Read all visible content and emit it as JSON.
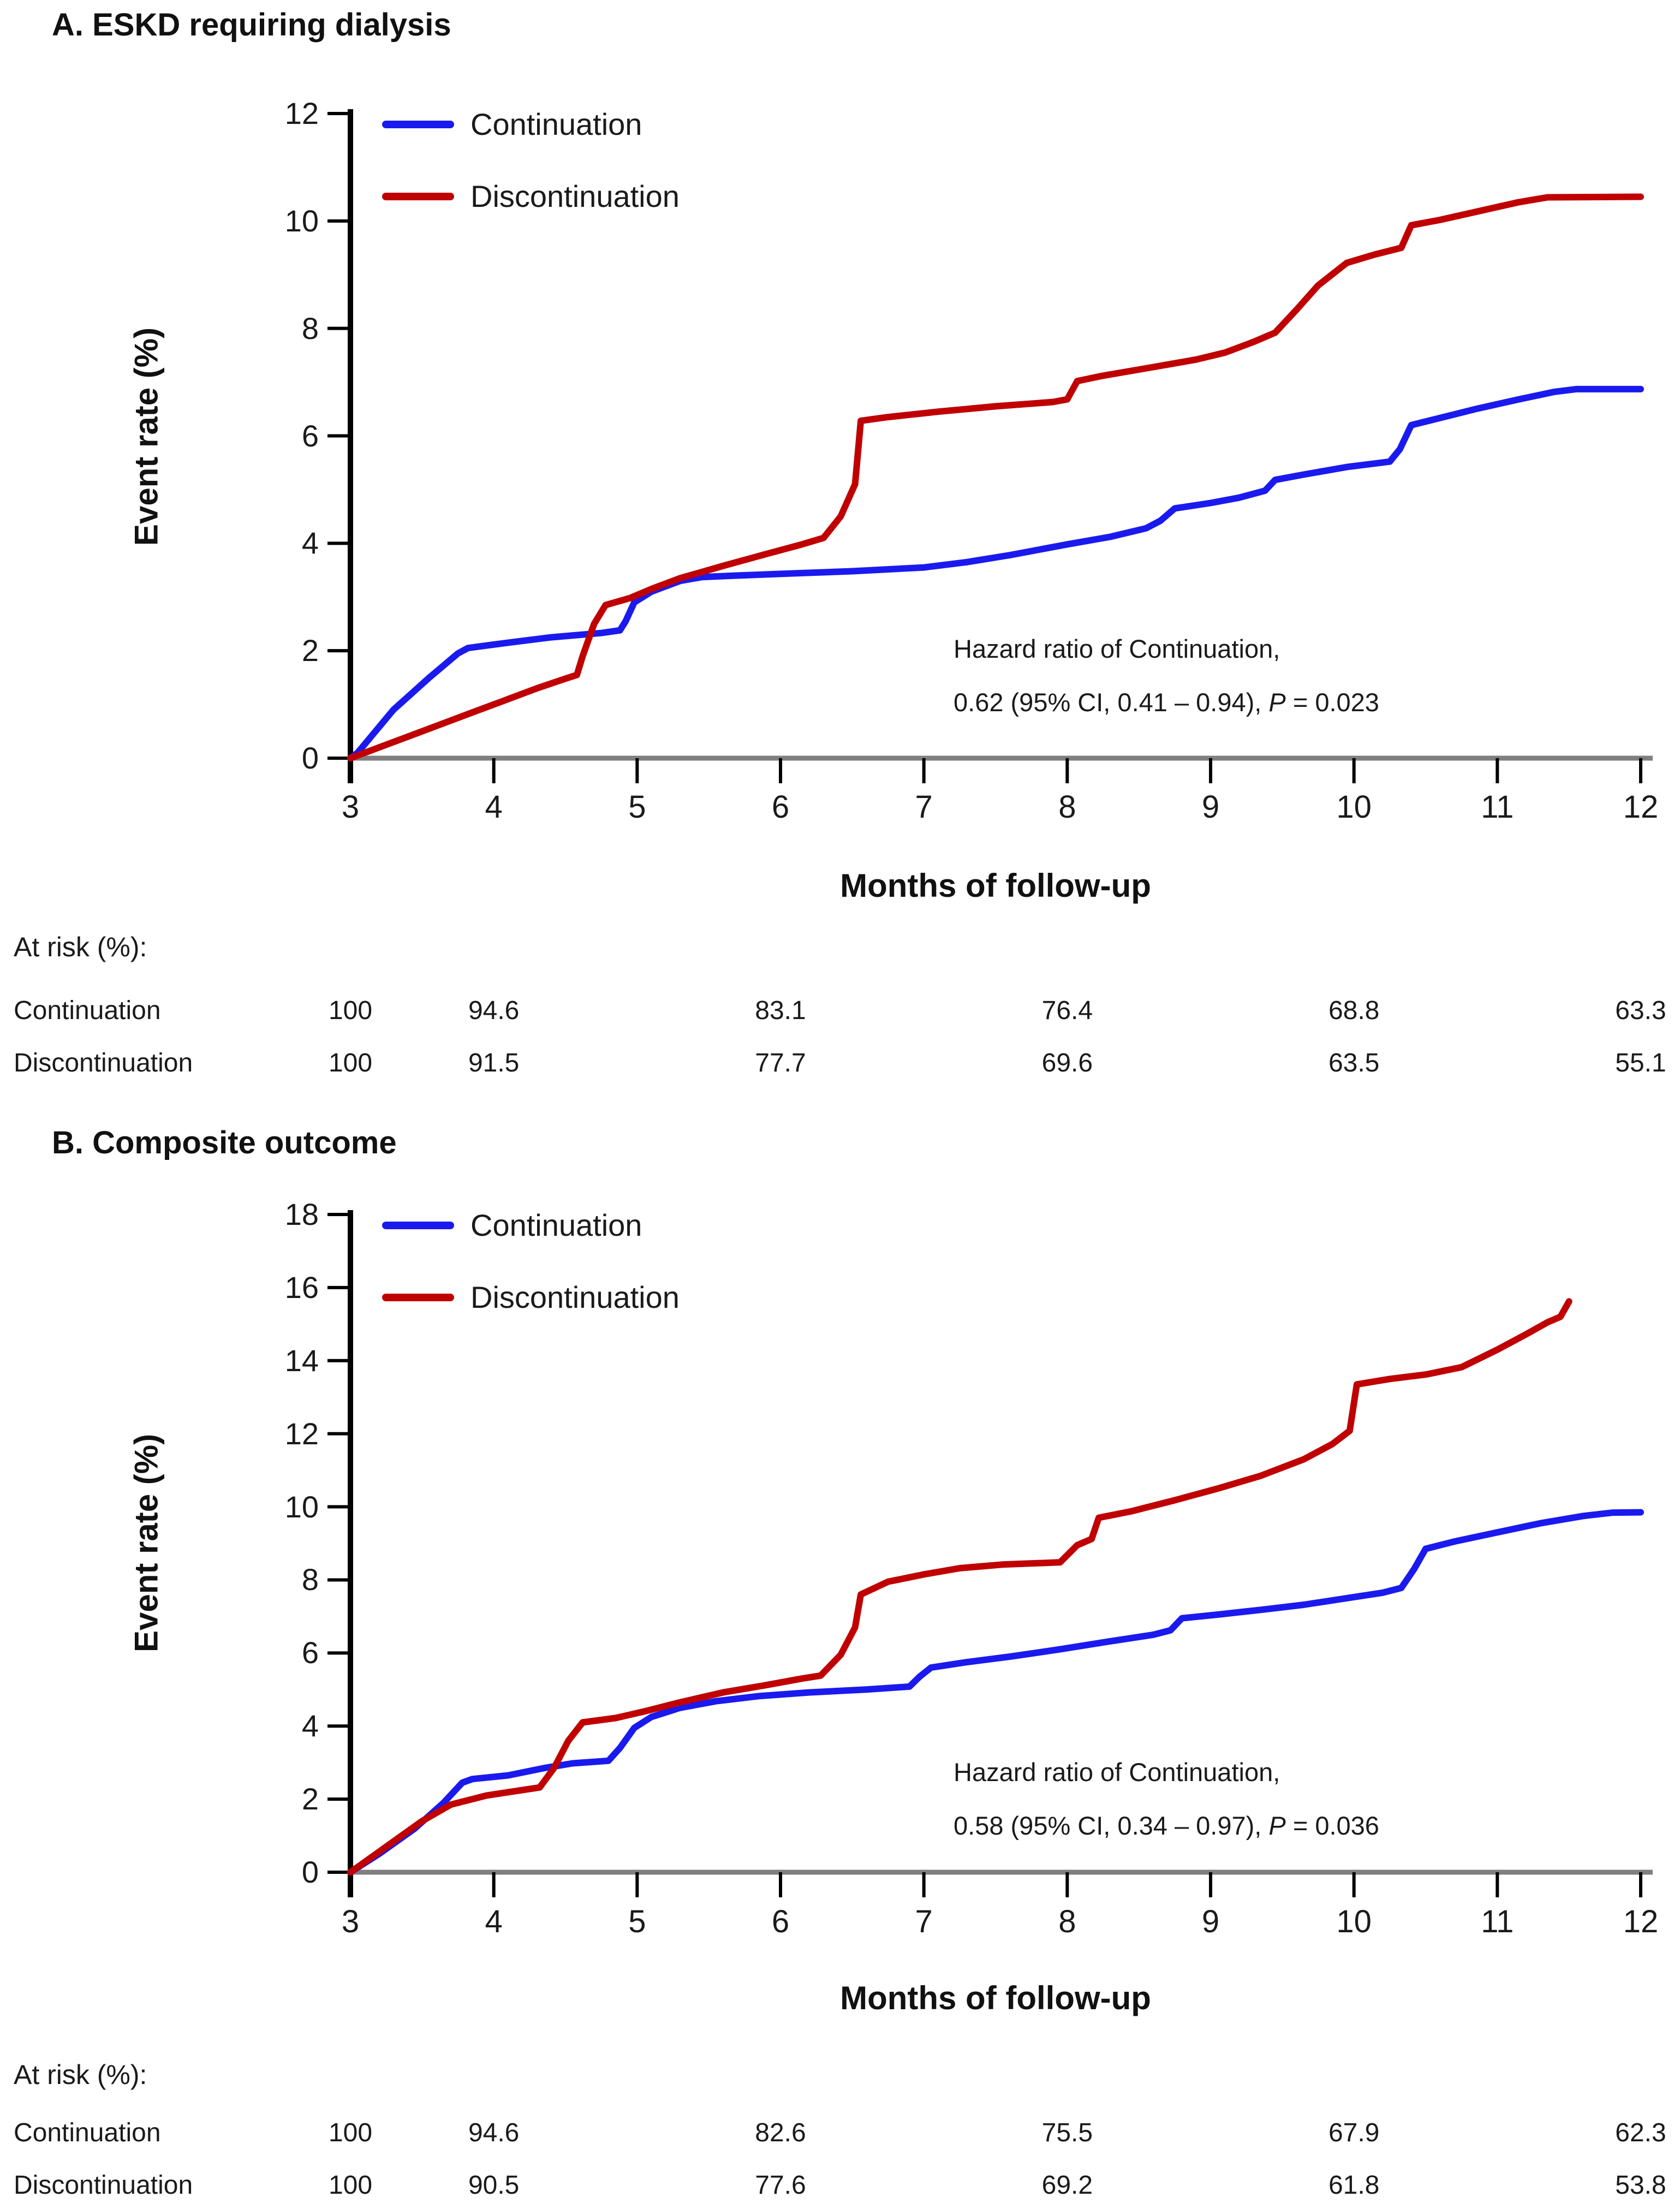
{
  "colors": {
    "continuation": "#1a1aef",
    "discontinuation": "#c00000",
    "y_axis": "#000000",
    "x_baseline": "#7f7f7f",
    "tick": "#000000",
    "text": "#1a1a1a"
  },
  "chart_data": [
    {
      "type": "line",
      "title": "A. ESKD requiring dialysis",
      "xlabel": "Months of follow-up",
      "ylabel": "Event rate (%)",
      "xlim": [
        3,
        12
      ],
      "ylim": [
        0,
        12
      ],
      "xticks": [
        3,
        4,
        5,
        6,
        7,
        8,
        9,
        10,
        11,
        12
      ],
      "yticks": [
        0,
        2,
        4,
        6,
        8,
        10,
        12
      ],
      "grid": false,
      "legend_position": "top-left-inside",
      "annotation": {
        "line1": "Hazard ratio of Continuation,",
        "line2_prefix": "0.62 (95% CI, 0.41 – 0.94), ",
        "line2_italic": "P",
        "line2_suffix": " = 0.023"
      },
      "series": [
        {
          "name": "Continuation",
          "color": "#1a1aef",
          "x": [
            3.0,
            3.05,
            3.3,
            3.55,
            3.75,
            3.82,
            4.1,
            4.4,
            4.75,
            4.88,
            4.92,
            4.98,
            5.1,
            5.3,
            5.45,
            5.7,
            6.1,
            6.5,
            7.0,
            7.3,
            7.6,
            8.0,
            8.3,
            8.55,
            8.65,
            8.75,
            9.0,
            9.2,
            9.38,
            9.45,
            9.65,
            9.95,
            10.25,
            10.32,
            10.4,
            10.55,
            10.85,
            11.15,
            11.4,
            11.55,
            12.0
          ],
          "y": [
            0,
            0.1,
            0.9,
            1.5,
            1.95,
            2.05,
            2.15,
            2.25,
            2.33,
            2.38,
            2.55,
            2.9,
            3.1,
            3.3,
            3.37,
            3.4,
            3.44,
            3.48,
            3.55,
            3.65,
            3.78,
            3.98,
            4.12,
            4.28,
            4.42,
            4.65,
            4.75,
            4.85,
            4.98,
            5.18,
            5.28,
            5.42,
            5.52,
            5.75,
            6.2,
            6.3,
            6.5,
            6.68,
            6.82,
            6.87,
            6.87
          ]
        },
        {
          "name": "Discontinuation",
          "color": "#c00000",
          "x": [
            3.0,
            3.25,
            3.55,
            3.85,
            4.05,
            4.3,
            4.5,
            4.58,
            4.62,
            4.7,
            4.78,
            4.95,
            5.1,
            5.3,
            5.6,
            5.9,
            6.15,
            6.3,
            6.42,
            6.52,
            6.56,
            6.75,
            7.1,
            7.5,
            7.9,
            8.0,
            8.07,
            8.25,
            8.6,
            8.9,
            9.1,
            9.3,
            9.45,
            9.6,
            9.75,
            9.95,
            10.15,
            10.33,
            10.4,
            10.6,
            10.9,
            11.15,
            11.35,
            12.0
          ],
          "y": [
            0,
            0.25,
            0.55,
            0.85,
            1.05,
            1.3,
            1.48,
            1.55,
            1.9,
            2.5,
            2.85,
            2.98,
            3.15,
            3.35,
            3.58,
            3.8,
            3.98,
            4.1,
            4.5,
            5.1,
            6.28,
            6.35,
            6.45,
            6.55,
            6.63,
            6.68,
            7.02,
            7.12,
            7.28,
            7.42,
            7.55,
            7.75,
            7.92,
            8.35,
            8.8,
            9.22,
            9.38,
            9.5,
            9.92,
            10.02,
            10.2,
            10.35,
            10.44,
            10.45
          ]
        }
      ],
      "at_risk": {
        "label": "At risk (%):",
        "months": [
          3,
          4,
          6,
          8,
          10,
          12
        ],
        "rows": [
          {
            "name": "Continuation",
            "values": [
              "100",
              "94.6",
              "83.1",
              "76.4",
              "68.8",
              "63.3"
            ]
          },
          {
            "name": "Discontinuation",
            "values": [
              "100",
              "91.5",
              "77.7",
              "69.6",
              "63.5",
              "55.1"
            ]
          }
        ]
      }
    },
    {
      "type": "line",
      "title": "B. Composite outcome",
      "xlabel": "Months of follow-up",
      "ylabel": "Event rate (%)",
      "xlim": [
        3,
        12
      ],
      "ylim": [
        0,
        18
      ],
      "xticks": [
        3,
        4,
        5,
        6,
        7,
        8,
        9,
        10,
        11,
        12
      ],
      "yticks": [
        0,
        2,
        4,
        6,
        8,
        10,
        12,
        14,
        16,
        18
      ],
      "grid": false,
      "legend_position": "top-left-inside",
      "annotation": {
        "line1": "Hazard ratio of Continuation,",
        "line2_prefix": "0.58 (95% CI, 0.34 – 0.97), ",
        "line2_italic": "P",
        "line2_suffix": " = 0.036"
      },
      "series": [
        {
          "name": "Continuation",
          "color": "#1a1aef",
          "x": [
            3.0,
            3.2,
            3.45,
            3.65,
            3.78,
            3.85,
            4.1,
            4.35,
            4.55,
            4.8,
            4.88,
            4.98,
            5.1,
            5.3,
            5.55,
            5.85,
            6.2,
            6.6,
            6.9,
            6.97,
            7.05,
            7.3,
            7.6,
            7.95,
            8.3,
            8.6,
            8.72,
            8.8,
            9.05,
            9.35,
            9.65,
            9.95,
            10.2,
            10.33,
            10.42,
            10.5,
            10.7,
            11.0,
            11.3,
            11.6,
            11.8,
            12.0
          ],
          "y": [
            0,
            0.5,
            1.2,
            1.9,
            2.45,
            2.55,
            2.65,
            2.85,
            2.98,
            3.05,
            3.4,
            3.95,
            4.25,
            4.5,
            4.68,
            4.82,
            4.92,
            5.0,
            5.08,
            5.35,
            5.6,
            5.75,
            5.9,
            6.1,
            6.32,
            6.5,
            6.62,
            6.95,
            7.05,
            7.18,
            7.32,
            7.5,
            7.65,
            7.78,
            8.3,
            8.85,
            9.05,
            9.3,
            9.55,
            9.75,
            9.84,
            9.85
          ]
        },
        {
          "name": "Discontinuation",
          "color": "#c00000",
          "x": [
            3.0,
            3.25,
            3.5,
            3.7,
            3.95,
            4.15,
            4.32,
            4.42,
            4.52,
            4.62,
            4.85,
            5.05,
            5.3,
            5.6,
            5.9,
            6.15,
            6.28,
            6.42,
            6.52,
            6.56,
            6.75,
            7.0,
            7.25,
            7.55,
            7.95,
            8.07,
            8.17,
            8.22,
            8.45,
            8.75,
            9.05,
            9.35,
            9.65,
            9.85,
            9.97,
            10.02,
            10.25,
            10.5,
            10.75,
            11.0,
            11.2,
            11.35,
            11.44,
            11.5
          ],
          "y": [
            0,
            0.7,
            1.4,
            1.85,
            2.1,
            2.22,
            2.32,
            2.85,
            3.6,
            4.1,
            4.22,
            4.4,
            4.65,
            4.92,
            5.12,
            5.3,
            5.38,
            5.95,
            6.7,
            7.6,
            7.95,
            8.15,
            8.32,
            8.42,
            8.48,
            8.95,
            9.12,
            9.7,
            9.88,
            10.18,
            10.5,
            10.85,
            11.3,
            11.72,
            12.08,
            13.35,
            13.5,
            13.62,
            13.82,
            14.3,
            14.72,
            15.05,
            15.2,
            15.62
          ]
        }
      ],
      "at_risk": {
        "label": "At risk (%):",
        "months": [
          3,
          4,
          6,
          8,
          10,
          12
        ],
        "rows": [
          {
            "name": "Continuation",
            "values": [
              "100",
              "94.6",
              "82.6",
              "75.5",
              "67.9",
              "62.3"
            ]
          },
          {
            "name": "Discontinuation",
            "values": [
              "100",
              "90.5",
              "77.6",
              "69.2",
              "61.8",
              "53.8"
            ]
          }
        ]
      }
    }
  ]
}
